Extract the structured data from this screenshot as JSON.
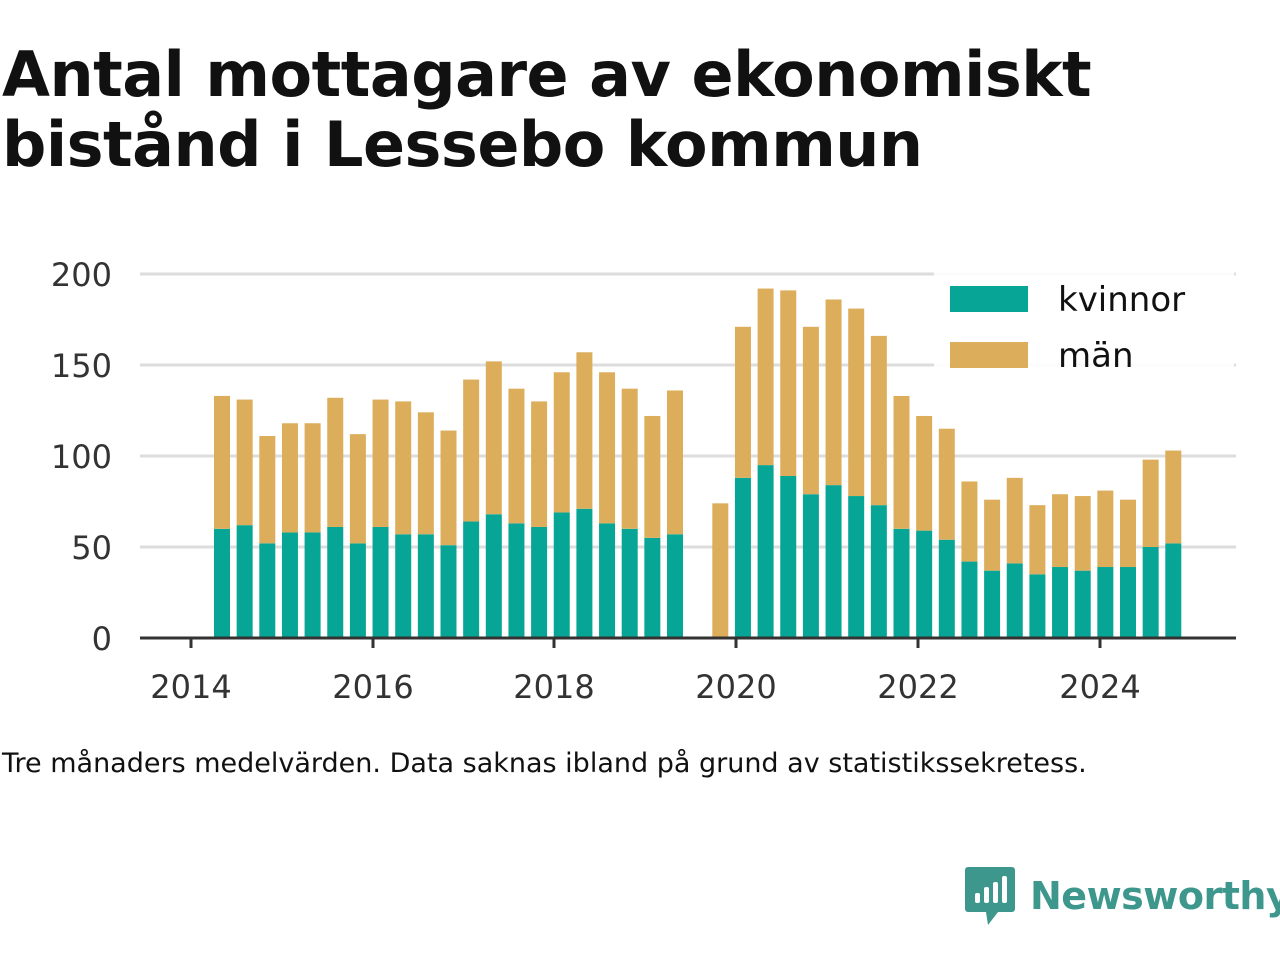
{
  "title": "Antal mottagare av ekonomiskt bistånd i Lessebo kommun",
  "note": "Tre månaders medelvärden. Data saknas ibland på grund av statistikssekretess.",
  "brand": {
    "name": "Newsworthy",
    "color": "#3d978c"
  },
  "colors": {
    "kvinnor": "#07a596",
    "man": "#dcae5c",
    "grid": "#dddddd",
    "axis": "#333333"
  },
  "chart_data": {
    "type": "bar",
    "stacked": true,
    "x_tick_labels": [
      "2014",
      "2016",
      "2018",
      "2020",
      "2022",
      "2024"
    ],
    "y_ticks": [
      0,
      50,
      100,
      150,
      200
    ],
    "ylim": [
      0,
      200
    ],
    "legend_position": "top-right",
    "grid": true,
    "categories": [
      "2014-Q2",
      "2014-Q3",
      "2014-Q4",
      "2015-Q1",
      "2015-Q2",
      "2015-Q3",
      "2015-Q4",
      "2016-Q1",
      "2016-Q2",
      "2016-Q3",
      "2016-Q4",
      "2017-Q1",
      "2017-Q2",
      "2017-Q3",
      "2017-Q4",
      "2018-Q1",
      "2018-Q2",
      "2018-Q3",
      "2018-Q4",
      "2019-Q1",
      "2019-Q2",
      "2019-Q3",
      "2019-Q4",
      "2020-Q1",
      "2020-Q2",
      "2020-Q3",
      "2020-Q4",
      "2021-Q1",
      "2021-Q2",
      "2021-Q3",
      "2021-Q4",
      "2022-Q1",
      "2022-Q2",
      "2022-Q3",
      "2022-Q4",
      "2023-Q1",
      "2023-Q2",
      "2023-Q3",
      "2023-Q4",
      "2024-Q1",
      "2024-Q2",
      "2024-Q3",
      "2024-Q4"
    ],
    "series": [
      {
        "name": "kvinnor",
        "color": "#07a596",
        "values": [
          60,
          62,
          52,
          58,
          58,
          61,
          52,
          61,
          57,
          57,
          51,
          64,
          68,
          63,
          61,
          69,
          71,
          63,
          60,
          55,
          57,
          null,
          0,
          88,
          95,
          89,
          79,
          84,
          78,
          73,
          60,
          59,
          54,
          42,
          37,
          41,
          35,
          39,
          37,
          39,
          39,
          50,
          52
        ]
      },
      {
        "name": "män",
        "color": "#dcae5c",
        "values": [
          73,
          69,
          59,
          60,
          60,
          71,
          60,
          70,
          73,
          67,
          63,
          78,
          84,
          74,
          69,
          77,
          86,
          83,
          77,
          67,
          79,
          null,
          74,
          83,
          97,
          102,
          92,
          102,
          103,
          93,
          73,
          63,
          61,
          44,
          39,
          47,
          38,
          40,
          41,
          42,
          37,
          48,
          51
        ]
      }
    ]
  }
}
